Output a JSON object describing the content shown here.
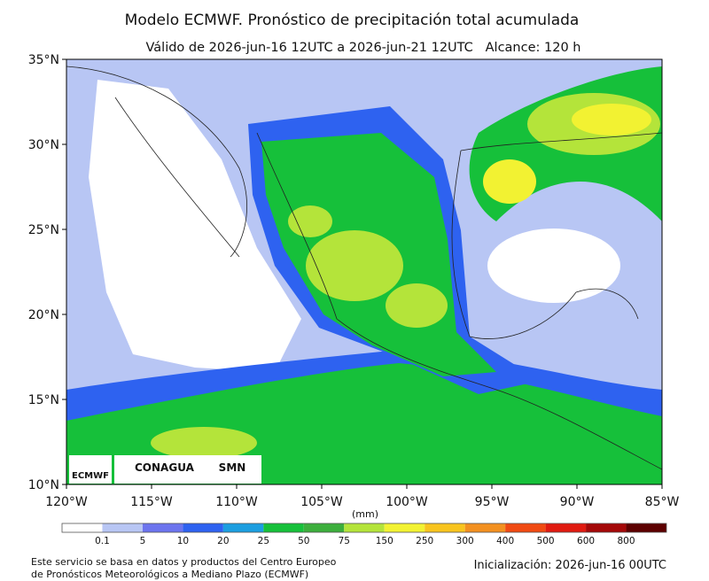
{
  "title": "Modelo ECMWF. Pronóstico de precipitación total acumulada",
  "subtitle": "Válido de 2026-jun-16 12UTC a 2026-jun-21 12UTC   Alcance: 120 h",
  "map": {
    "lat_labels": [
      "35°N",
      "30°N",
      "25°N",
      "20°N",
      "15°N",
      "10°N"
    ],
    "lon_labels": [
      "120°W",
      "115°W",
      "110°W",
      "105°W",
      "100°W",
      "95°W",
      "90°W",
      "85°W"
    ],
    "logos": [
      "ECMWF",
      "CONAGUA",
      "SMN"
    ]
  },
  "colorbar": {
    "unit": "(mm)",
    "labels": [
      "0.1",
      "5",
      "10",
      "20",
      "25",
      "50",
      "75",
      "150",
      "250",
      "300",
      "400",
      "500",
      "600",
      "800"
    ],
    "colors": [
      "#ffffff",
      "#b8c6f4",
      "#6c74ee",
      "#2e62f0",
      "#1c9ee0",
      "#16c03a",
      "#3cae3c",
      "#b4e43a",
      "#f2f232",
      "#f8c41e",
      "#f29020",
      "#f04a12",
      "#e01a10",
      "#a40808",
      "#5c0000"
    ]
  },
  "footer": {
    "source": [
      "Este servicio se basa en datos y productos del Centro Europeo",
      "de Pronósticos Meteorológicos a Mediano Plazo (ECMWF)"
    ],
    "init": "Inicialización: 2026-jun-16 00UTC"
  }
}
